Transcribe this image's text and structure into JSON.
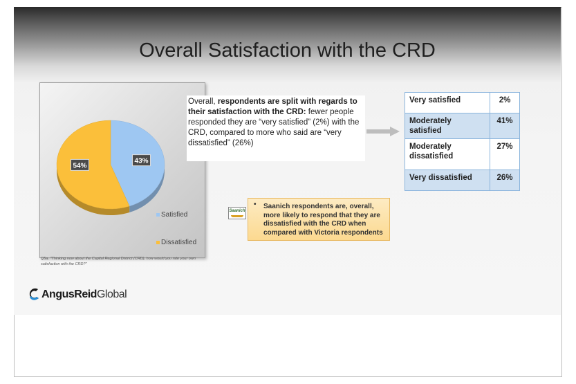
{
  "title": "Overall Satisfaction with the CRD",
  "chart_data": {
    "type": "pie",
    "title": "",
    "slices": [
      {
        "name": "Satisfied",
        "value": 43,
        "label": "43%",
        "color": "#9ec7f2"
      },
      {
        "name": "Dissatisfied",
        "value": 54,
        "label": "54%",
        "color": "#fbbf3a"
      }
    ],
    "legend": [
      "Satisfied",
      "Dissatisfied"
    ],
    "legend_position": "bottom-right"
  },
  "footnote": "Q5a. \"Thinking now about the Capital Regional District (CRD), how would you rate your own satisfaction with the CRD?\"",
  "callout": {
    "prefix": "Overall, ",
    "bold": "respondents are split with regards to their satisfaction with the CRD:",
    "rest": " fewer people responded they are “very satisfied” (2%) with the CRD, compared to more who said are “very dissatisfied” (26%)"
  },
  "table": {
    "rows": [
      {
        "label": "Very satisfied",
        "value": "2%"
      },
      {
        "label": "Moderately satisfied",
        "value": "41%"
      },
      {
        "label": "Moderately dissatisfied",
        "value": "27%"
      },
      {
        "label": "Very dissatisfied",
        "value": "26%"
      }
    ]
  },
  "saanich_note": {
    "logo_text": "Saanich",
    "bullet": "•",
    "text": "Saanich respondents are, overall, more likely to respond that they are dissatisfied with the CRD when compared with Victoria respondents"
  },
  "brand": {
    "bold": "AngusReid",
    "light": "Global"
  },
  "colors": {
    "arrow": "#bdbdbd",
    "table_border": "#8ab4dc",
    "table_shade": "#cfe0f1",
    "note_bg": "#fcd990"
  }
}
